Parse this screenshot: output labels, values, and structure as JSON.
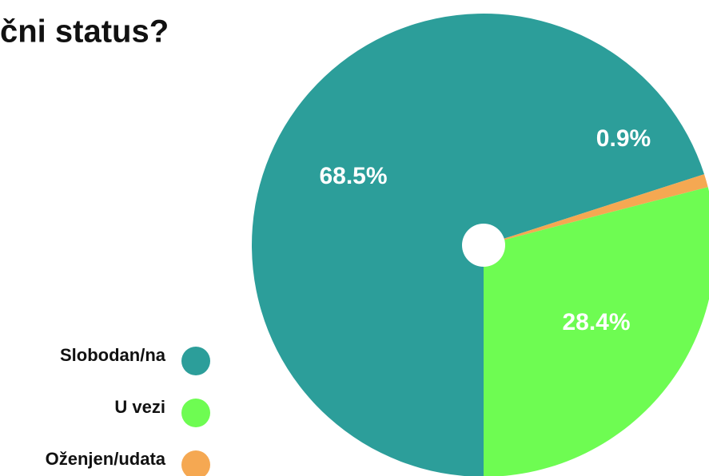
{
  "chart_data": {
    "type": "pie",
    "title": "čni status?",
    "categories": [
      "Slobodan/na",
      "U vezi",
      "Oženjen/udata"
    ],
    "values": [
      68.5,
      28.4,
      0.9
    ],
    "value_labels": [
      "68.5%",
      "28.4%",
      "0.9%"
    ],
    "colors": [
      "#2c9e9a",
      "#6efc52",
      "#f5a852"
    ],
    "legend": "left"
  }
}
